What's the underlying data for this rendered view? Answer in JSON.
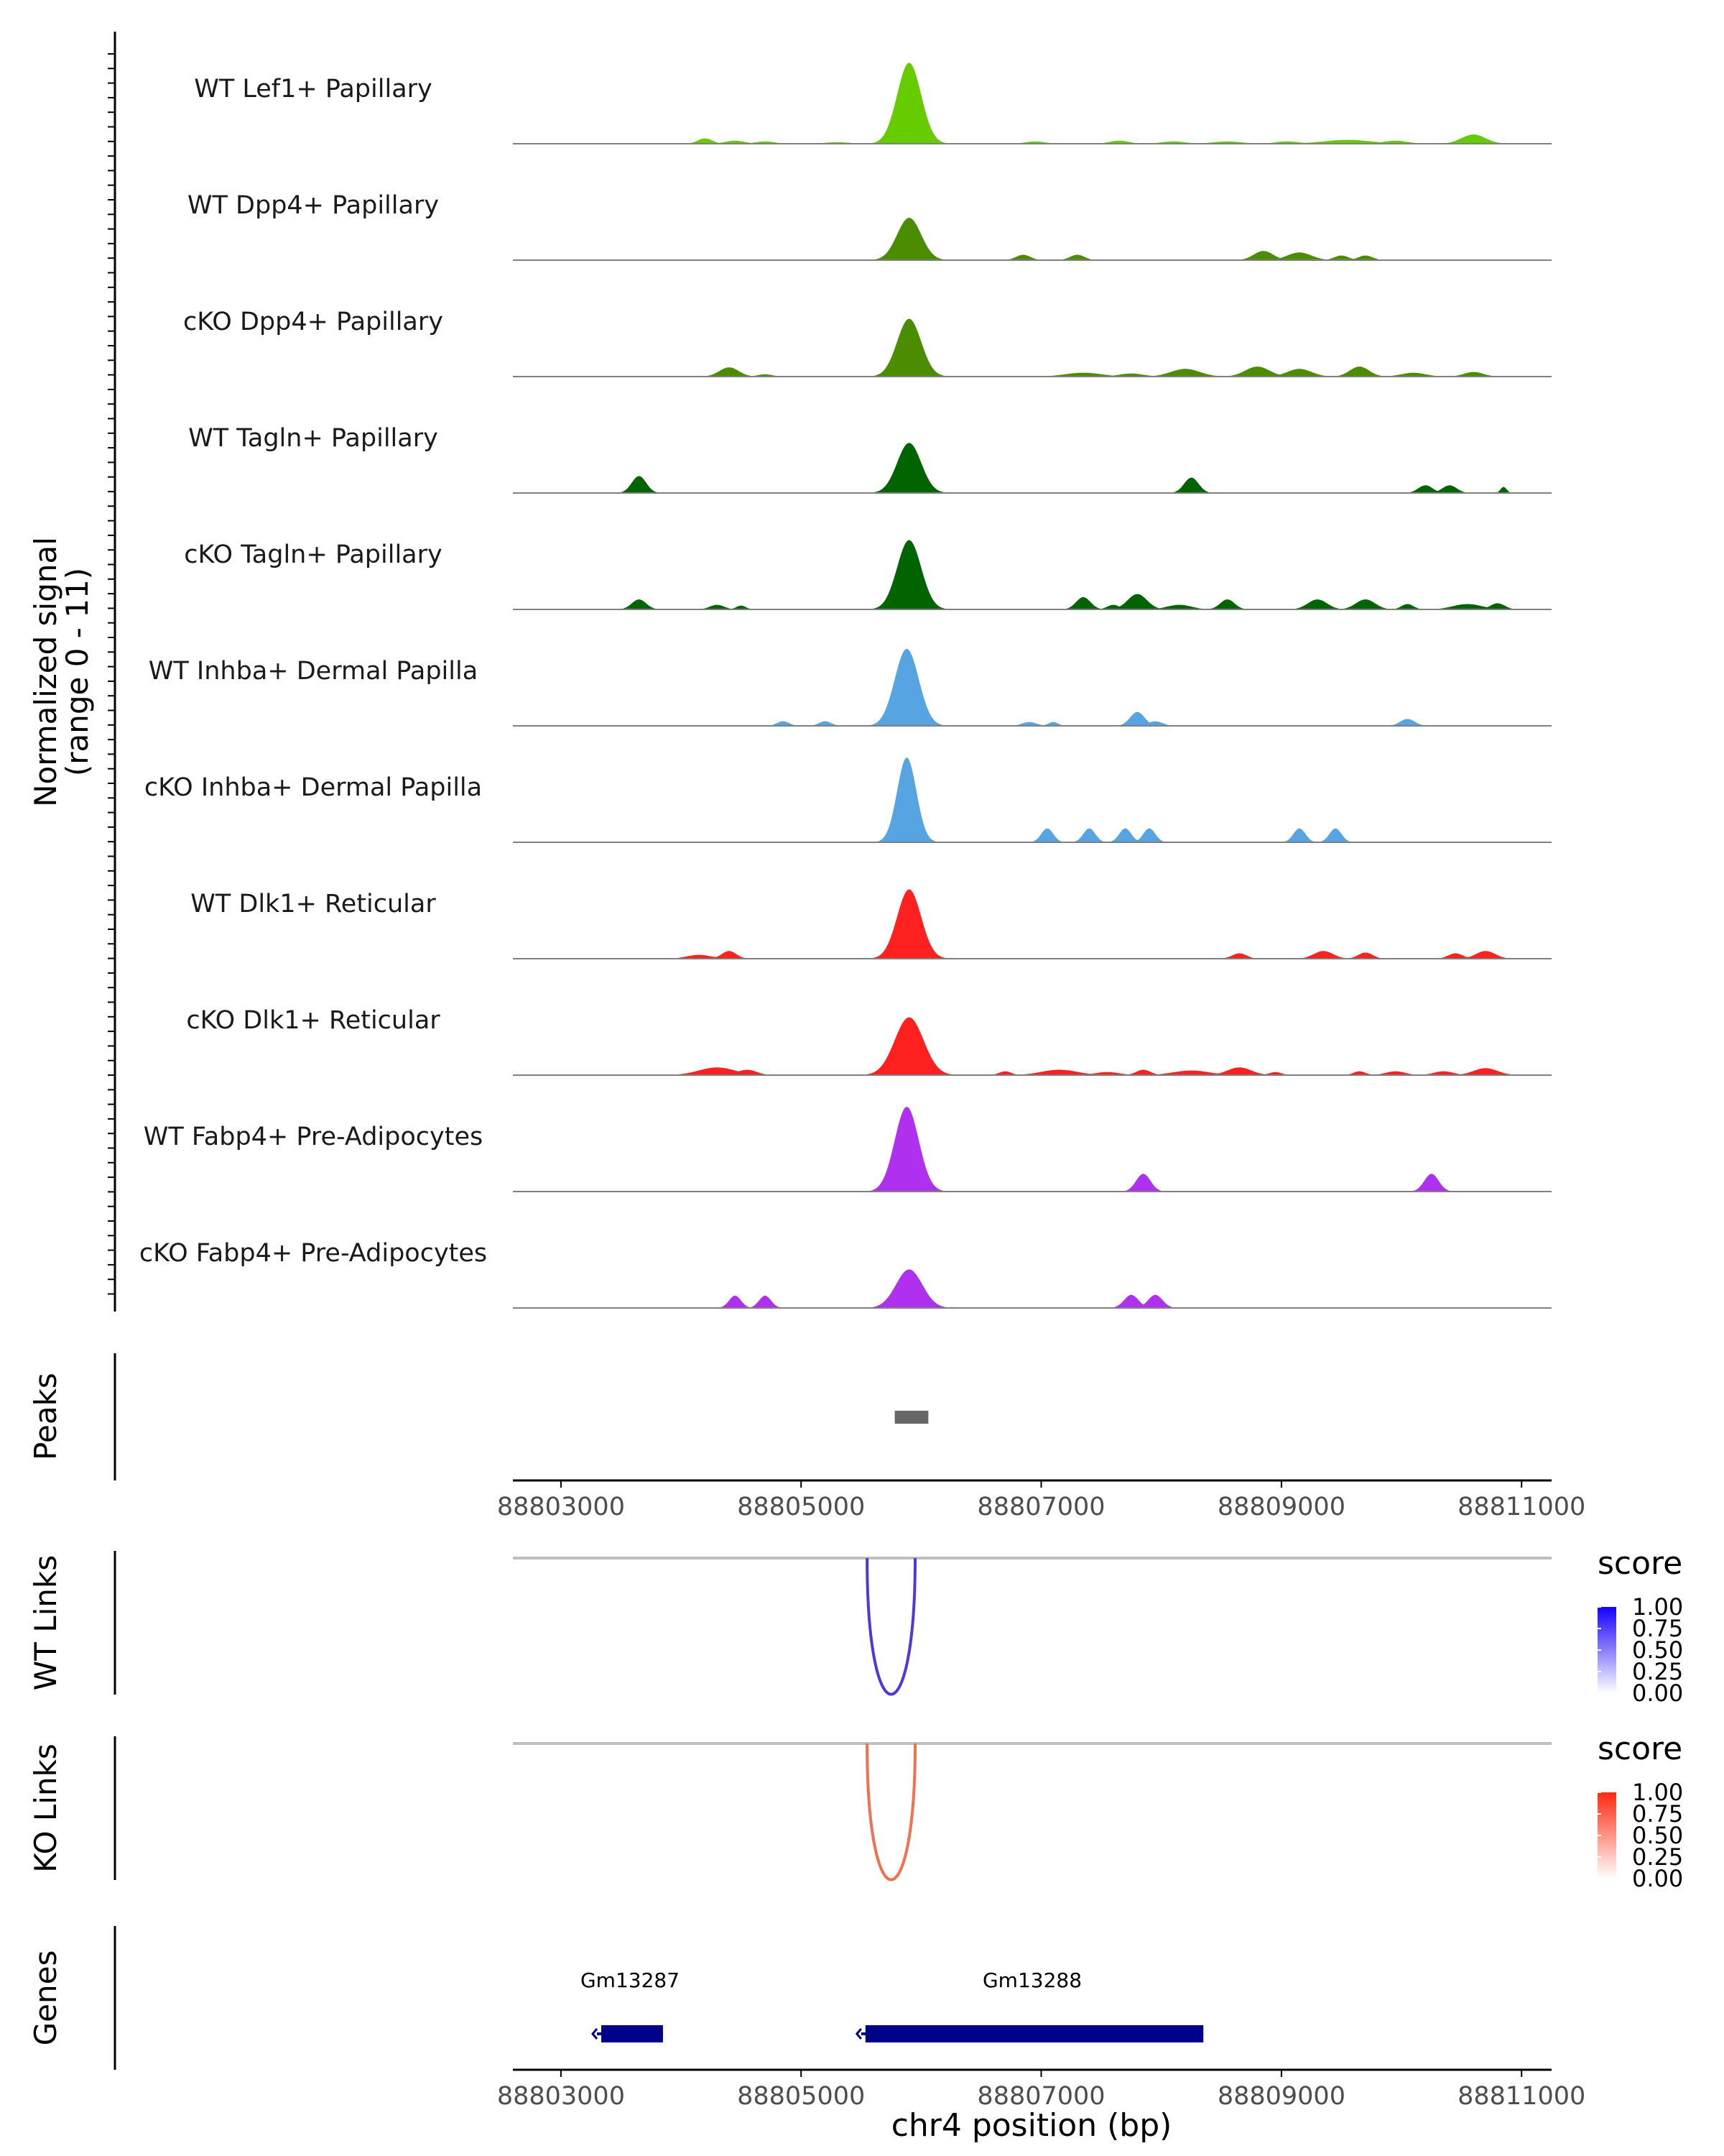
{
  "chart_data": {
    "type": "area",
    "title": "",
    "region": "chr4",
    "xlabel": "chr4 position (bp)",
    "xlim": [
      88802600,
      88811250
    ],
    "xticks": [
      88803000,
      88805000,
      88807000,
      88809000,
      88811000
    ],
    "xtick_labels": [
      "88803000",
      "88805000",
      "88807000",
      "88809000",
      "88811000"
    ],
    "ylabel_line1": "Normalized signal",
    "ylabel_line2": "(range 0 - 11)",
    "ylim": [
      0,
      11
    ],
    "tracks": [
      {
        "name": "WT Lef1+ Papillary",
        "color": "#66CC00",
        "peaks": [
          [
            88805900,
            10.5,
            100
          ],
          [
            88804200,
            0.7,
            60
          ],
          [
            88804450,
            0.4,
            80
          ],
          [
            88804700,
            0.3,
            80
          ],
          [
            88805300,
            0.2,
            100
          ],
          [
            88806950,
            0.3,
            80
          ],
          [
            88807650,
            0.4,
            80
          ],
          [
            88808100,
            0.3,
            100
          ],
          [
            88808550,
            0.3,
            120
          ],
          [
            88809050,
            0.3,
            100
          ],
          [
            88809550,
            0.5,
            200
          ],
          [
            88809950,
            0.4,
            100
          ],
          [
            88810600,
            1.2,
            100
          ]
        ]
      },
      {
        "name": "WT Dpp4+ Papillary",
        "color": "#4C8C00",
        "peaks": [
          [
            88805900,
            5.5,
            100
          ],
          [
            88806850,
            0.7,
            60
          ],
          [
            88807300,
            0.7,
            60
          ],
          [
            88808850,
            1.2,
            80
          ],
          [
            88809150,
            1.0,
            100
          ],
          [
            88809500,
            0.6,
            60
          ],
          [
            88809700,
            0.6,
            60
          ]
        ]
      },
      {
        "name": "cKO Dpp4+ Papillary",
        "color": "#4C8C00",
        "peaks": [
          [
            88805900,
            7.5,
            100
          ],
          [
            88804400,
            1.2,
            80
          ],
          [
            88804700,
            0.3,
            60
          ],
          [
            88807350,
            0.5,
            150
          ],
          [
            88807750,
            0.4,
            100
          ],
          [
            88808200,
            1.0,
            120
          ],
          [
            88808800,
            1.3,
            100
          ],
          [
            88809150,
            1.0,
            100
          ],
          [
            88809650,
            1.3,
            80
          ],
          [
            88810100,
            0.5,
            100
          ],
          [
            88810600,
            0.6,
            80
          ]
        ]
      },
      {
        "name": "WT Tagln+ Papillary",
        "color": "#006400",
        "peaks": [
          [
            88805900,
            6.5,
            100
          ],
          [
            88803650,
            2.2,
            60
          ],
          [
            88808250,
            2.0,
            60
          ],
          [
            88810200,
            1.0,
            60
          ],
          [
            88810400,
            1.0,
            60
          ],
          [
            88810850,
            0.8,
            25
          ]
        ]
      },
      {
        "name": "cKO Tagln+ Papillary",
        "color": "#006400",
        "peaks": [
          [
            88805900,
            9.0,
            100
          ],
          [
            88803650,
            1.3,
            60
          ],
          [
            88804300,
            0.6,
            60
          ],
          [
            88804500,
            0.5,
            40
          ],
          [
            88807350,
            1.6,
            60
          ],
          [
            88807600,
            0.6,
            50
          ],
          [
            88807800,
            2.0,
            80
          ],
          [
            88808150,
            0.6,
            100
          ],
          [
            88808550,
            1.3,
            60
          ],
          [
            88809300,
            1.3,
            80
          ],
          [
            88809700,
            1.3,
            80
          ],
          [
            88810050,
            0.7,
            50
          ],
          [
            88810550,
            0.7,
            120
          ],
          [
            88810800,
            0.8,
            60
          ]
        ]
      },
      {
        "name": "WT Inhba+ Dermal Papilla",
        "color": "#56A4E2",
        "peaks": [
          [
            88805880,
            10.0,
            100
          ],
          [
            88804850,
            0.6,
            50
          ],
          [
            88805200,
            0.6,
            50
          ],
          [
            88806900,
            0.5,
            60
          ],
          [
            88807100,
            0.5,
            40
          ],
          [
            88807800,
            1.8,
            60
          ],
          [
            88807950,
            0.6,
            60
          ],
          [
            88810050,
            0.9,
            60
          ]
        ]
      },
      {
        "name": "cKO Inhba+ Dermal Papilla",
        "color": "#56A4E2",
        "peaks": [
          [
            88805880,
            11.0,
            80
          ],
          [
            88807050,
            1.8,
            50
          ],
          [
            88807400,
            1.8,
            50
          ],
          [
            88807700,
            1.8,
            50
          ],
          [
            88807900,
            1.8,
            50
          ],
          [
            88809150,
            1.8,
            50
          ],
          [
            88809450,
            1.8,
            50
          ]
        ]
      },
      {
        "name": "WT Dlk1+ Reticular",
        "color": "#FF2020",
        "peaks": [
          [
            88805900,
            9.0,
            100
          ],
          [
            88804150,
            0.5,
            100
          ],
          [
            88804400,
            1.0,
            60
          ],
          [
            88808650,
            0.7,
            60
          ],
          [
            88809350,
            1.0,
            80
          ],
          [
            88809700,
            0.8,
            60
          ],
          [
            88810450,
            0.7,
            60
          ],
          [
            88810700,
            1.0,
            80
          ]
        ]
      },
      {
        "name": "cKO Dlk1+ Reticular",
        "color": "#FF2020",
        "peaks": [
          [
            88805900,
            7.5,
            120
          ],
          [
            88804300,
            1.0,
            150
          ],
          [
            88804550,
            0.7,
            80
          ],
          [
            88806700,
            0.5,
            50
          ],
          [
            88807150,
            0.7,
            150
          ],
          [
            88807550,
            0.4,
            100
          ],
          [
            88807850,
            0.7,
            60
          ],
          [
            88808250,
            0.6,
            150
          ],
          [
            88808650,
            1.0,
            100
          ],
          [
            88808950,
            0.4,
            50
          ],
          [
            88809650,
            0.5,
            50
          ],
          [
            88809950,
            0.5,
            80
          ],
          [
            88810350,
            0.5,
            80
          ],
          [
            88810700,
            0.9,
            100
          ]
        ]
      },
      {
        "name": "WT Fabp4+ Pre-Adipocytes",
        "color": "#B030F0",
        "peaks": [
          [
            88805880,
            11.0,
            100
          ],
          [
            88807850,
            2.3,
            60
          ],
          [
            88810250,
            2.3,
            60
          ]
        ]
      },
      {
        "name": "cKO Fabp4+ Pre-Adipocytes",
        "color": "#B030F0",
        "peaks": [
          [
            88805900,
            5.0,
            110
          ],
          [
            88804450,
            1.6,
            50
          ],
          [
            88804700,
            1.6,
            50
          ],
          [
            88807750,
            1.7,
            60
          ],
          [
            88807950,
            1.7,
            60
          ]
        ]
      }
    ],
    "peaks_track": {
      "label": "Peaks",
      "color": "#666666",
      "regions": [
        [
          88805780,
          88806060
        ]
      ]
    },
    "links": [
      {
        "label": "WT Links",
        "color": "#5533DD",
        "start": 88805550,
        "end": 88805950,
        "score": 0.8,
        "legend": {
          "title": "score",
          "ticks": [
            "1.00",
            "0.75",
            "0.50",
            "0.25",
            "0.00"
          ],
          "color_high": "#1500FF",
          "color_low": "#FFFFFF"
        }
      },
      {
        "label": "KO Links",
        "color": "#F0704F",
        "start": 88805550,
        "end": 88805950,
        "score": 0.6,
        "legend": {
          "title": "score",
          "ticks": [
            "1.00",
            "0.75",
            "0.50",
            "0.25",
            "0.00"
          ],
          "color_high": "#FF2A10",
          "color_low": "#FFFFFF"
        }
      }
    ],
    "genes_track": {
      "label": "Genes",
      "color": "#00008B",
      "genes": [
        {
          "name": "Gm13287",
          "start": 88803300,
          "end": 88803850,
          "strand": "-"
        },
        {
          "name": "Gm13288",
          "start": 88805500,
          "end": 88808350,
          "strand": "-"
        }
      ]
    }
  }
}
